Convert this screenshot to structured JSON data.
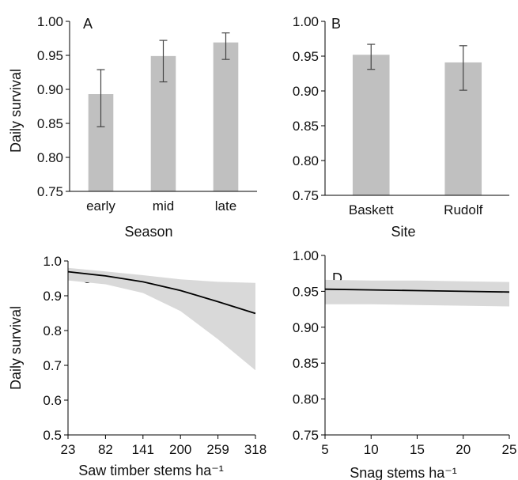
{
  "chart_data": [
    {
      "panel": "A",
      "type": "bar",
      "categories": [
        "early",
        "mid",
        "late"
      ],
      "values": [
        0.893,
        0.949,
        0.969
      ],
      "error_low": [
        0.845,
        0.911,
        0.944
      ],
      "error_high": [
        0.929,
        0.972,
        0.983
      ],
      "xlabel": "Season",
      "ylabel": "Daily survival",
      "ylim": [
        0.75,
        1.0
      ],
      "yticks": [
        "0.75",
        "0.80",
        "0.85",
        "0.90",
        "0.95",
        "1.00"
      ],
      "grid": false
    },
    {
      "panel": "B",
      "type": "bar",
      "categories": [
        "Baskett",
        "Rudolf"
      ],
      "values": [
        0.952,
        0.941
      ],
      "error_low": [
        0.931,
        0.901
      ],
      "error_high": [
        0.967,
        0.965
      ],
      "xlabel": "Site",
      "ylabel": "",
      "ylim": [
        0.75,
        1.0
      ],
      "yticks": [
        "0.75",
        "0.80",
        "0.85",
        "0.90",
        "0.95",
        "1.00"
      ],
      "grid": false
    },
    {
      "panel": "C",
      "type": "line",
      "x": [
        23,
        82,
        141,
        200,
        259,
        318
      ],
      "values": [
        0.969,
        0.957,
        0.94,
        0.915,
        0.883,
        0.849
      ],
      "band_low": [
        0.944,
        0.933,
        0.908,
        0.856,
        0.775,
        0.686
      ],
      "band_high": [
        0.98,
        0.97,
        0.959,
        0.947,
        0.94,
        0.937
      ],
      "xlabel": "Saw timber stems ha⁻¹",
      "ylabel": "Daily survival",
      "xlim": [
        23,
        318
      ],
      "xticks": [
        "23",
        "82",
        "141",
        "200",
        "259",
        "318"
      ],
      "ylim": [
        0.5,
        1.0
      ],
      "yticks": [
        "0.5",
        "0.6",
        "0.7",
        "0.8",
        "0.9",
        "1.0"
      ],
      "grid": false
    },
    {
      "panel": "D",
      "type": "line",
      "x": [
        5,
        10,
        15,
        20,
        25
      ],
      "values": [
        0.953,
        0.952,
        0.951,
        0.95,
        0.949
      ],
      "band_low": [
        0.932,
        0.932,
        0.931,
        0.93,
        0.929
      ],
      "band_high": [
        0.966,
        0.965,
        0.965,
        0.964,
        0.963
      ],
      "xlabel": "Snag stems ha⁻¹",
      "ylabel": "",
      "xlim": [
        5,
        25
      ],
      "xticks": [
        "5",
        "10",
        "15",
        "20",
        "25"
      ],
      "ylim": [
        0.75,
        1.0
      ],
      "yticks": [
        "0.75",
        "0.80",
        "0.85",
        "0.90",
        "0.95",
        "1.00"
      ],
      "grid": false
    }
  ],
  "colors": {
    "bar": "#c0c0c0",
    "band": "#d9d9d9",
    "line": "#000000",
    "axis": "#000000",
    "errorbar": "#444444"
  }
}
